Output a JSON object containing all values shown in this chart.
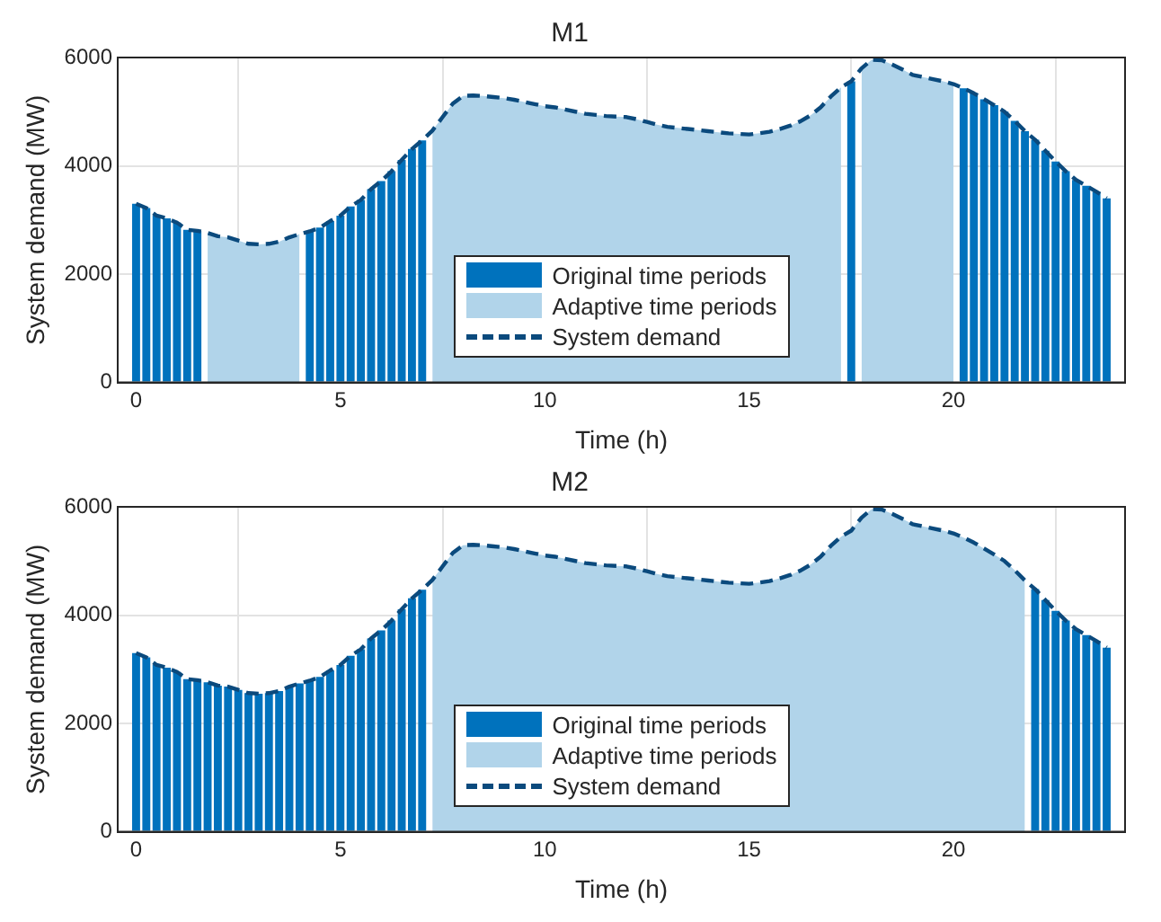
{
  "chart_data": [
    {
      "type": "bar",
      "title": "M1",
      "xlabel": "Time (h)",
      "ylabel": "System demand (MW)",
      "xlim": [
        -0.45,
        24.2
      ],
      "xticks": [
        0,
        5,
        10,
        15,
        20
      ],
      "ylim": [
        0,
        6000
      ],
      "yticks": [
        0,
        2000,
        4000,
        6000
      ],
      "grid": true,
      "legend": "bottom",
      "x": [
        0,
        0.25,
        0.5,
        0.75,
        1,
        1.25,
        1.5,
        1.75,
        2,
        2.25,
        2.5,
        2.75,
        3,
        3.25,
        3.5,
        3.75,
        4,
        4.25,
        4.5,
        4.75,
        5,
        5.25,
        5.5,
        5.75,
        6,
        6.25,
        6.5,
        6.75,
        7,
        7.25,
        7.5,
        7.75,
        8,
        8.25,
        8.5,
        8.75,
        9,
        9.25,
        9.5,
        9.75,
        10,
        10.25,
        10.5,
        10.75,
        11,
        11.25,
        11.5,
        11.75,
        12,
        12.25,
        12.5,
        12.75,
        13,
        13.25,
        13.5,
        13.75,
        14,
        14.25,
        14.5,
        14.75,
        15,
        15.25,
        15.5,
        15.75,
        16,
        16.25,
        16.5,
        16.75,
        17,
        17.25,
        17.5,
        17.75,
        18,
        18.25,
        18.5,
        18.75,
        19,
        19.25,
        19.5,
        19.75,
        20,
        20.25,
        20.5,
        20.75,
        21,
        21.25,
        21.5,
        21.75,
        22,
        22.25,
        22.5,
        22.75,
        23,
        23.25,
        23.5,
        23.75
      ],
      "series": [
        {
          "name": "Original time periods",
          "color": "#0072bd",
          "values": [
            3300,
            3220,
            3080,
            3030,
            2950,
            2820,
            2800,
            null,
            null,
            null,
            null,
            null,
            null,
            null,
            null,
            null,
            null,
            2790,
            2860,
            2980,
            3080,
            3250,
            3370,
            3570,
            3720,
            3900,
            4110,
            4310,
            4470,
            null,
            null,
            null,
            null,
            null,
            null,
            null,
            null,
            null,
            null,
            null,
            null,
            null,
            null,
            null,
            null,
            null,
            null,
            null,
            null,
            null,
            null,
            null,
            null,
            null,
            null,
            null,
            null,
            null,
            null,
            null,
            null,
            null,
            null,
            null,
            null,
            null,
            null,
            null,
            null,
            null,
            5560,
            null,
            null,
            null,
            null,
            null,
            null,
            null,
            null,
            null,
            null,
            5430,
            5340,
            5230,
            5120,
            5000,
            4830,
            4640,
            4480,
            4280,
            4080,
            3900,
            3740,
            3630,
            3520,
            3400
          ]
        },
        {
          "name": "Adaptive time periods",
          "type": "area",
          "color": "#b1d4ea",
          "values": [
            null,
            null,
            null,
            null,
            null,
            null,
            null,
            2760,
            2700,
            2680,
            2620,
            2560,
            2550,
            2560,
            2600,
            2680,
            2740,
            null,
            null,
            null,
            null,
            null,
            null,
            null,
            null,
            null,
            null,
            null,
            null,
            4650,
            4900,
            5150,
            5290,
            5300,
            5290,
            5270,
            5250,
            5220,
            5180,
            5140,
            5100,
            5080,
            5040,
            5000,
            4960,
            4940,
            4920,
            4910,
            4900,
            4860,
            4810,
            4760,
            4720,
            4700,
            4680,
            4660,
            4640,
            4620,
            4600,
            4590,
            4580,
            4600,
            4630,
            4680,
            4740,
            4820,
            4930,
            5080,
            5280,
            5450,
            null,
            5800,
            5960,
            5950,
            5870,
            5780,
            5680,
            5640,
            5600,
            5560,
            5510,
            null,
            null,
            null,
            null,
            null,
            null,
            null,
            null,
            null,
            null,
            null,
            null,
            null,
            null,
            null
          ]
        },
        {
          "name": "System demand",
          "type": "line",
          "color": "#0b4a7d",
          "line_style": "dashed",
          "values": [
            3300,
            3220,
            3080,
            3030,
            2950,
            2820,
            2800,
            2760,
            2700,
            2680,
            2620,
            2560,
            2550,
            2560,
            2600,
            2680,
            2740,
            2790,
            2860,
            2980,
            3080,
            3250,
            3370,
            3570,
            3720,
            3900,
            4110,
            4310,
            4470,
            4650,
            4900,
            5150,
            5290,
            5300,
            5290,
            5270,
            5250,
            5220,
            5180,
            5140,
            5100,
            5080,
            5040,
            5000,
            4960,
            4940,
            4920,
            4910,
            4900,
            4860,
            4810,
            4760,
            4720,
            4700,
            4680,
            4660,
            4640,
            4620,
            4600,
            4590,
            4580,
            4600,
            4630,
            4680,
            4740,
            4820,
            4930,
            5080,
            5280,
            5450,
            5560,
            5800,
            5960,
            5950,
            5870,
            5780,
            5680,
            5640,
            5600,
            5560,
            5510,
            5430,
            5340,
            5230,
            5120,
            5000,
            4830,
            4640,
            4480,
            4280,
            4080,
            3900,
            3740,
            3630,
            3520,
            3400
          ]
        }
      ]
    },
    {
      "type": "bar",
      "title": "M2",
      "xlabel": "Time (h)",
      "ylabel": "System demand (MW)",
      "xlim": [
        -0.45,
        24.2
      ],
      "xticks": [
        0,
        5,
        10,
        15,
        20
      ],
      "ylim": [
        0,
        6000
      ],
      "yticks": [
        0,
        2000,
        4000,
        6000
      ],
      "grid": true,
      "legend": "bottom",
      "x": [
        0,
        0.25,
        0.5,
        0.75,
        1,
        1.25,
        1.5,
        1.75,
        2,
        2.25,
        2.5,
        2.75,
        3,
        3.25,
        3.5,
        3.75,
        4,
        4.25,
        4.5,
        4.75,
        5,
        5.25,
        5.5,
        5.75,
        6,
        6.25,
        6.5,
        6.75,
        7,
        7.25,
        7.5,
        7.75,
        8,
        8.25,
        8.5,
        8.75,
        9,
        9.25,
        9.5,
        9.75,
        10,
        10.25,
        10.5,
        10.75,
        11,
        11.25,
        11.5,
        11.75,
        12,
        12.25,
        12.5,
        12.75,
        13,
        13.25,
        13.5,
        13.75,
        14,
        14.25,
        14.5,
        14.75,
        15,
        15.25,
        15.5,
        15.75,
        16,
        16.25,
        16.5,
        16.75,
        17,
        17.25,
        17.5,
        17.75,
        18,
        18.25,
        18.5,
        18.75,
        19,
        19.25,
        19.5,
        19.75,
        20,
        20.25,
        20.5,
        20.75,
        21,
        21.25,
        21.5,
        21.75,
        22,
        22.25,
        22.5,
        22.75,
        23,
        23.25,
        23.5,
        23.75
      ],
      "series": [
        {
          "name": "Original time periods",
          "color": "#0072bd",
          "values": [
            3300,
            3220,
            3080,
            3030,
            2950,
            2820,
            2800,
            2760,
            2700,
            2680,
            2620,
            2560,
            2550,
            2560,
            2600,
            2680,
            2740,
            2790,
            2860,
            2980,
            3080,
            3250,
            3370,
            3570,
            3720,
            3900,
            4110,
            4310,
            4470,
            null,
            null,
            null,
            null,
            null,
            null,
            null,
            null,
            null,
            null,
            null,
            null,
            null,
            null,
            null,
            null,
            null,
            null,
            null,
            null,
            null,
            null,
            null,
            null,
            null,
            null,
            null,
            null,
            null,
            null,
            null,
            null,
            null,
            null,
            null,
            null,
            null,
            null,
            null,
            null,
            null,
            null,
            null,
            null,
            null,
            null,
            null,
            null,
            null,
            null,
            null,
            null,
            null,
            null,
            null,
            null,
            null,
            null,
            null,
            4480,
            4280,
            4080,
            3900,
            3740,
            3630,
            3520,
            3400
          ]
        },
        {
          "name": "Adaptive time periods",
          "type": "area",
          "color": "#b1d4ea",
          "values": [
            null,
            null,
            null,
            null,
            null,
            null,
            null,
            null,
            null,
            null,
            null,
            null,
            null,
            null,
            null,
            null,
            null,
            null,
            null,
            null,
            null,
            null,
            null,
            null,
            null,
            null,
            null,
            null,
            null,
            4650,
            4900,
            5150,
            5290,
            5300,
            5290,
            5270,
            5250,
            5220,
            5180,
            5140,
            5100,
            5080,
            5040,
            5000,
            4960,
            4940,
            4920,
            4910,
            4900,
            4860,
            4810,
            4760,
            4720,
            4700,
            4680,
            4660,
            4640,
            4620,
            4600,
            4590,
            4580,
            4600,
            4630,
            4680,
            4740,
            4820,
            4930,
            5080,
            5280,
            5450,
            5560,
            5800,
            5960,
            5950,
            5870,
            5780,
            5680,
            5640,
            5600,
            5560,
            5510,
            5430,
            5340,
            5230,
            5120,
            5000,
            4830,
            4640,
            null,
            null,
            null,
            null,
            null,
            null,
            null,
            null
          ]
        },
        {
          "name": "System demand",
          "type": "line",
          "color": "#0b4a7d",
          "line_style": "dashed",
          "values": [
            3300,
            3220,
            3080,
            3030,
            2950,
            2820,
            2800,
            2760,
            2700,
            2680,
            2620,
            2560,
            2550,
            2560,
            2600,
            2680,
            2740,
            2790,
            2860,
            2980,
            3080,
            3250,
            3370,
            3570,
            3720,
            3900,
            4110,
            4310,
            4470,
            4650,
            4900,
            5150,
            5290,
            5300,
            5290,
            5270,
            5250,
            5220,
            5180,
            5140,
            5100,
            5080,
            5040,
            5000,
            4960,
            4940,
            4920,
            4910,
            4900,
            4860,
            4810,
            4760,
            4720,
            4700,
            4680,
            4660,
            4640,
            4620,
            4600,
            4590,
            4580,
            4600,
            4630,
            4680,
            4740,
            4820,
            4930,
            5080,
            5280,
            5450,
            5560,
            5800,
            5960,
            5950,
            5870,
            5780,
            5680,
            5640,
            5600,
            5560,
            5510,
            5430,
            5340,
            5230,
            5120,
            5000,
            4830,
            4640,
            4480,
            4280,
            4080,
            3900,
            3740,
            3630,
            3520,
            3400
          ]
        }
      ]
    }
  ]
}
